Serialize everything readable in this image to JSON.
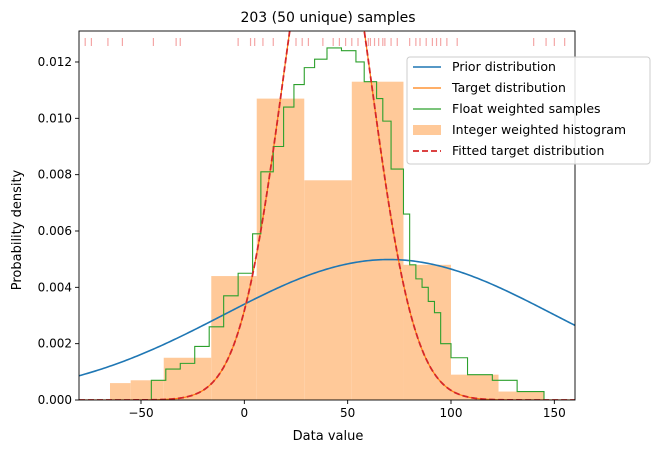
{
  "chart_data": {
    "type": "line",
    "title": "203 (50 unique) samples",
    "xlabel": "Data value",
    "ylabel": "Probability density",
    "xlim": [
      -80,
      160
    ],
    "ylim": [
      0,
      0.0131
    ],
    "x_ticks": [
      -50,
      0,
      50,
      100,
      150
    ],
    "x_tick_labels": [
      "−50",
      "0",
      "50",
      "100",
      "150"
    ],
    "y_ticks": [
      0,
      0.002,
      0.004,
      0.006,
      0.008,
      0.01,
      0.012
    ],
    "y_tick_labels": [
      "0.000",
      "0.002",
      "0.004",
      "0.006",
      "0.008",
      "0.010",
      "0.012"
    ],
    "grid": false,
    "legend_position": "upper right",
    "colors": {
      "prior": "#1f77b4",
      "target": "#ff7f0e",
      "float_weighted": "#2ca02c",
      "histogram": "#ffc999",
      "fitted": "#d62728",
      "rug": "#f4a6a6"
    },
    "series": [
      {
        "name": "Prior distribution",
        "kind": "normal_pdf",
        "mean": 70,
        "std": 80
      },
      {
        "name": "Target distribution",
        "kind": "normal_pdf",
        "mean": 40,
        "std": 21.2
      },
      {
        "name": "Float weighted samples",
        "kind": "step",
        "edges": [
          -45,
          -38,
          -31,
          -24,
          -17,
          -10,
          -3,
          4,
          8,
          14,
          19,
          24,
          29,
          34,
          40,
          47,
          54,
          58,
          64,
          67,
          71,
          77,
          80,
          83,
          86,
          89,
          92,
          95,
          100,
          108,
          120,
          132,
          145
        ],
        "values": [
          0.0007,
          0.0011,
          0.0013,
          0.0019,
          0.0026,
          0.0037,
          0.0045,
          0.0059,
          0.0081,
          0.009,
          0.0104,
          0.0112,
          0.0118,
          0.0121,
          0.0125,
          0.0124,
          0.012,
          0.0113,
          0.0107,
          0.0099,
          0.0082,
          0.0066,
          0.0048,
          0.0043,
          0.004,
          0.0035,
          0.0031,
          0.002,
          0.0015,
          0.0009,
          0.0007,
          0.0003
        ]
      },
      {
        "name": "Integer weighted histogram",
        "kind": "histogram",
        "edges": [
          -65,
          -55,
          -39,
          -16,
          6,
          29,
          52,
          77,
          100,
          123,
          145
        ],
        "values": [
          0.0006,
          0.0007,
          0.0015,
          0.0044,
          0.0107,
          0.0078,
          0.0113,
          0.0048,
          0.0009,
          0.0003
        ]
      },
      {
        "name": "Fitted target distribution",
        "kind": "normal_pdf",
        "mean": 40,
        "std": 21.2
      }
    ],
    "rug_samples": [
      -77,
      -74,
      -66,
      -59,
      -44,
      -33,
      -31,
      -3,
      3,
      5,
      9,
      14,
      25,
      28,
      31,
      38,
      43,
      46,
      49,
      52,
      55,
      60,
      61,
      63,
      65,
      67,
      68,
      71,
      74,
      80,
      83,
      85,
      88,
      91,
      93,
      95,
      98,
      103,
      140,
      146,
      150,
      155
    ]
  }
}
